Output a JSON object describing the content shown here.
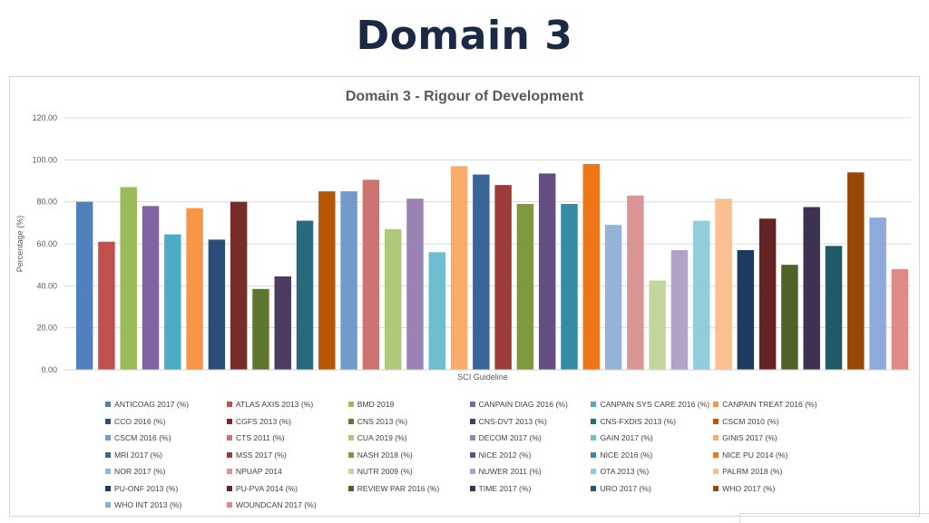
{
  "slide": {
    "title": "Domain 3"
  },
  "chart_data": {
    "type": "bar",
    "title": "Domain 3 - Rigour of Development",
    "xlabel": "SCI Guideline",
    "ylabel": "Percentage (%)",
    "ylim": [
      0,
      120
    ],
    "yticks": [
      "0.00",
      "20.00",
      "40.00",
      "60.00",
      "80.00",
      "100.00",
      "120.00"
    ],
    "grid": true,
    "legend_position": "bottom",
    "series": [
      {
        "name": "ANTICOAG 2017 (%)",
        "value": 80,
        "color": "#4f81bd"
      },
      {
        "name": "ATLAS AXIS 2013 (%)",
        "value": 61,
        "color": "#c0504d"
      },
      {
        "name": "BMD 2019",
        "value": 87,
        "color": "#9bbb59"
      },
      {
        "name": "CANPAIN DIAG 2016 (%)",
        "value": 78,
        "color": "#8064a2"
      },
      {
        "name": "CANPAIN SYS CARE 2016 (%)",
        "value": 64.5,
        "color": "#4bacc6"
      },
      {
        "name": "CANPAIN TREAT 2016 (%)",
        "value": 77,
        "color": "#f79646"
      },
      {
        "name": "CCO 2016 (%)",
        "value": 62,
        "color": "#2c4d75"
      },
      {
        "name": "CGFS 2013 (%)",
        "value": 80,
        "color": "#772c2a"
      },
      {
        "name": "CNS 2013 (%)",
        "value": 38.5,
        "color": "#5f7530"
      },
      {
        "name": "CNS-DVT 2013 (%)",
        "value": 44.5,
        "color": "#4d3b62"
      },
      {
        "name": "CNS-FXDIS 2013 (%)",
        "value": 71,
        "color": "#276a7c"
      },
      {
        "name": "CSCM 2010 (%)",
        "value": 85,
        "color": "#b65708"
      },
      {
        "name": "CSCM 2016 (%)",
        "value": 85,
        "color": "#729aca"
      },
      {
        "name": "CTS 2011 (%)",
        "value": 90.5,
        "color": "#cd7371"
      },
      {
        "name": "CUA 2019 (%)",
        "value": 67,
        "color": "#afc97a"
      },
      {
        "name": "DECOM 2017 (%)",
        "value": 81.5,
        "color": "#9983b5"
      },
      {
        "name": "GAIN 2017 (%)",
        "value": 56,
        "color": "#6fbdd1"
      },
      {
        "name": "GINIS 2017 (%)",
        "value": 97,
        "color": "#f9ab6b"
      },
      {
        "name": "MRI 2017 (%)",
        "value": 93,
        "color": "#3a6599"
      },
      {
        "name": "MSS 2017 (%)",
        "value": 88,
        "color": "#9c3b38"
      },
      {
        "name": "NASH 2018  (%)",
        "value": 79,
        "color": "#7d9a3f"
      },
      {
        "name": "NICE 2012  (%)",
        "value": 93.5,
        "color": "#654e81"
      },
      {
        "name": "NICE 2016  (%)",
        "value": 79,
        "color": "#348ba3"
      },
      {
        "name": "NICE PU 2014  (%)",
        "value": 98,
        "color": "#ee7518"
      },
      {
        "name": "NOR 2017  (%)",
        "value": 69,
        "color": "#95b3d7"
      },
      {
        "name": "NPUAP 2014",
        "value": 83,
        "color": "#d99694"
      },
      {
        "name": "NUTR 2009  (%)",
        "value": 42.5,
        "color": "#c3d69b"
      },
      {
        "name": "NUWER 2011 (%)",
        "value": 57,
        "color": "#b3a2c7"
      },
      {
        "name": "OTA 2013 (%)",
        "value": 71,
        "color": "#92cddc"
      },
      {
        "name": "PALRM 2018 (%)",
        "value": 81.5,
        "color": "#fac090"
      },
      {
        "name": "PU-ONF 2013 (%)",
        "value": 57,
        "color": "#1f3a5f"
      },
      {
        "name": "PU-PVA 2014 (%)",
        "value": 72,
        "color": "#632523"
      },
      {
        "name": "REVIEW PAR 2016 (%)",
        "value": 50,
        "color": "#4f6228"
      },
      {
        "name": "TIME 2017 (%)",
        "value": 77.5,
        "color": "#3f3151"
      },
      {
        "name": "URO 2017 (%)",
        "value": 59,
        "color": "#215968"
      },
      {
        "name": "WHO 2017 (%)",
        "value": 94,
        "color": "#974806"
      },
      {
        "name": "WHO INT 2013 (%)",
        "value": 72.5,
        "color": "#8eaadb"
      },
      {
        "name": "WOUNDCAN 2017 (%)",
        "value": 48,
        "color": "#e08b89"
      }
    ]
  }
}
